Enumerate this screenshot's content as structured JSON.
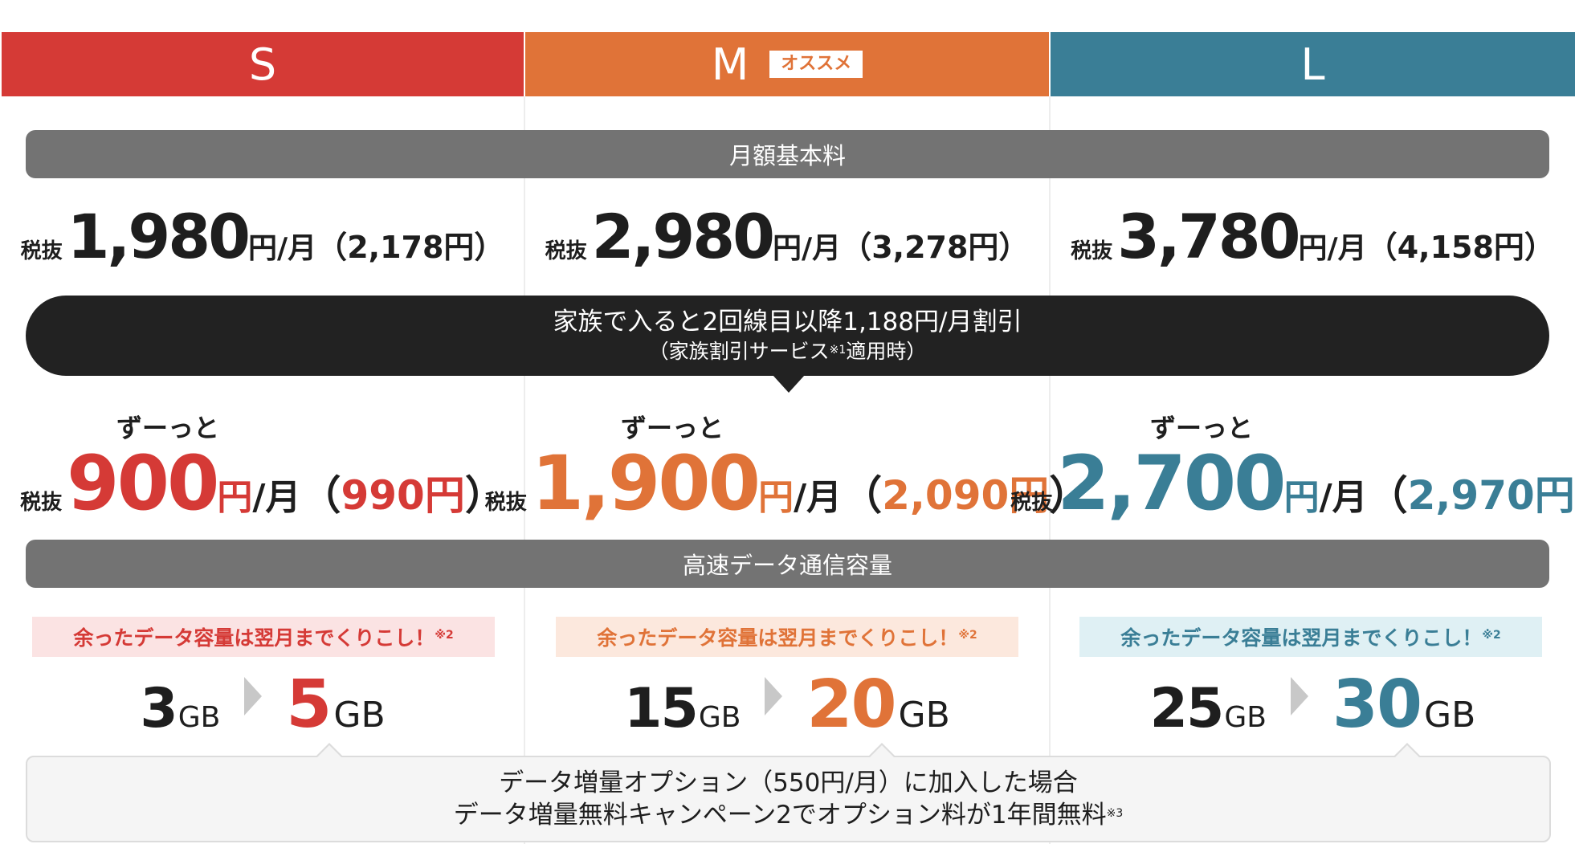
{
  "colors": {
    "s": "#d53a36",
    "m": "#e07338",
    "l": "#3a7e96",
    "gray": "#737373",
    "dark": "#222222"
  },
  "plans": [
    {
      "name": "S",
      "badge": "",
      "tax_label": "税抜",
      "price": "1,980",
      "yen": "円",
      "per": "/月",
      "taxed": "2,178",
      "forever": "ずーっと",
      "disc_price": "900",
      "disc_taxed": "990",
      "carry": "余ったデータ容量は翌月までくりこし！",
      "carry_note": "※2",
      "gb_from": "3",
      "gb_to": "5",
      "gb_unit": "GB"
    },
    {
      "name": "M",
      "badge": "オススメ",
      "tax_label": "税抜",
      "price": "2,980",
      "yen": "円",
      "per": "/月",
      "taxed": "3,278",
      "forever": "ずーっと",
      "disc_price": "1,900",
      "disc_taxed": "2,090",
      "carry": "余ったデータ容量は翌月までくりこし！",
      "carry_note": "※2",
      "gb_from": "15",
      "gb_to": "20",
      "gb_unit": "GB"
    },
    {
      "name": "L",
      "badge": "",
      "tax_label": "税抜",
      "price": "3,780",
      "yen": "円",
      "per": "/月",
      "taxed": "4,158",
      "forever": "ずーっと",
      "disc_price": "2,700",
      "disc_taxed": "2,970",
      "carry": "余ったデータ容量は翌月までくりこし！",
      "carry_note": "※2",
      "gb_from": "25",
      "gb_to": "30",
      "gb_unit": "GB"
    }
  ],
  "sections": {
    "monthly": "月額基本料",
    "data": "高速データ通信容量"
  },
  "family": {
    "line1": "家族で入ると2回線目以降1,188円/月割引",
    "line2_pre": "（家族割引サービス",
    "line2_note": "※1",
    "line2_post": "適用時）"
  },
  "option": {
    "line1": "データ増量オプション（550円/月）に加入した場合",
    "line2": "データ増量無料キャンペーン2でオプション料が1年間無料",
    "line2_note": "※3"
  }
}
